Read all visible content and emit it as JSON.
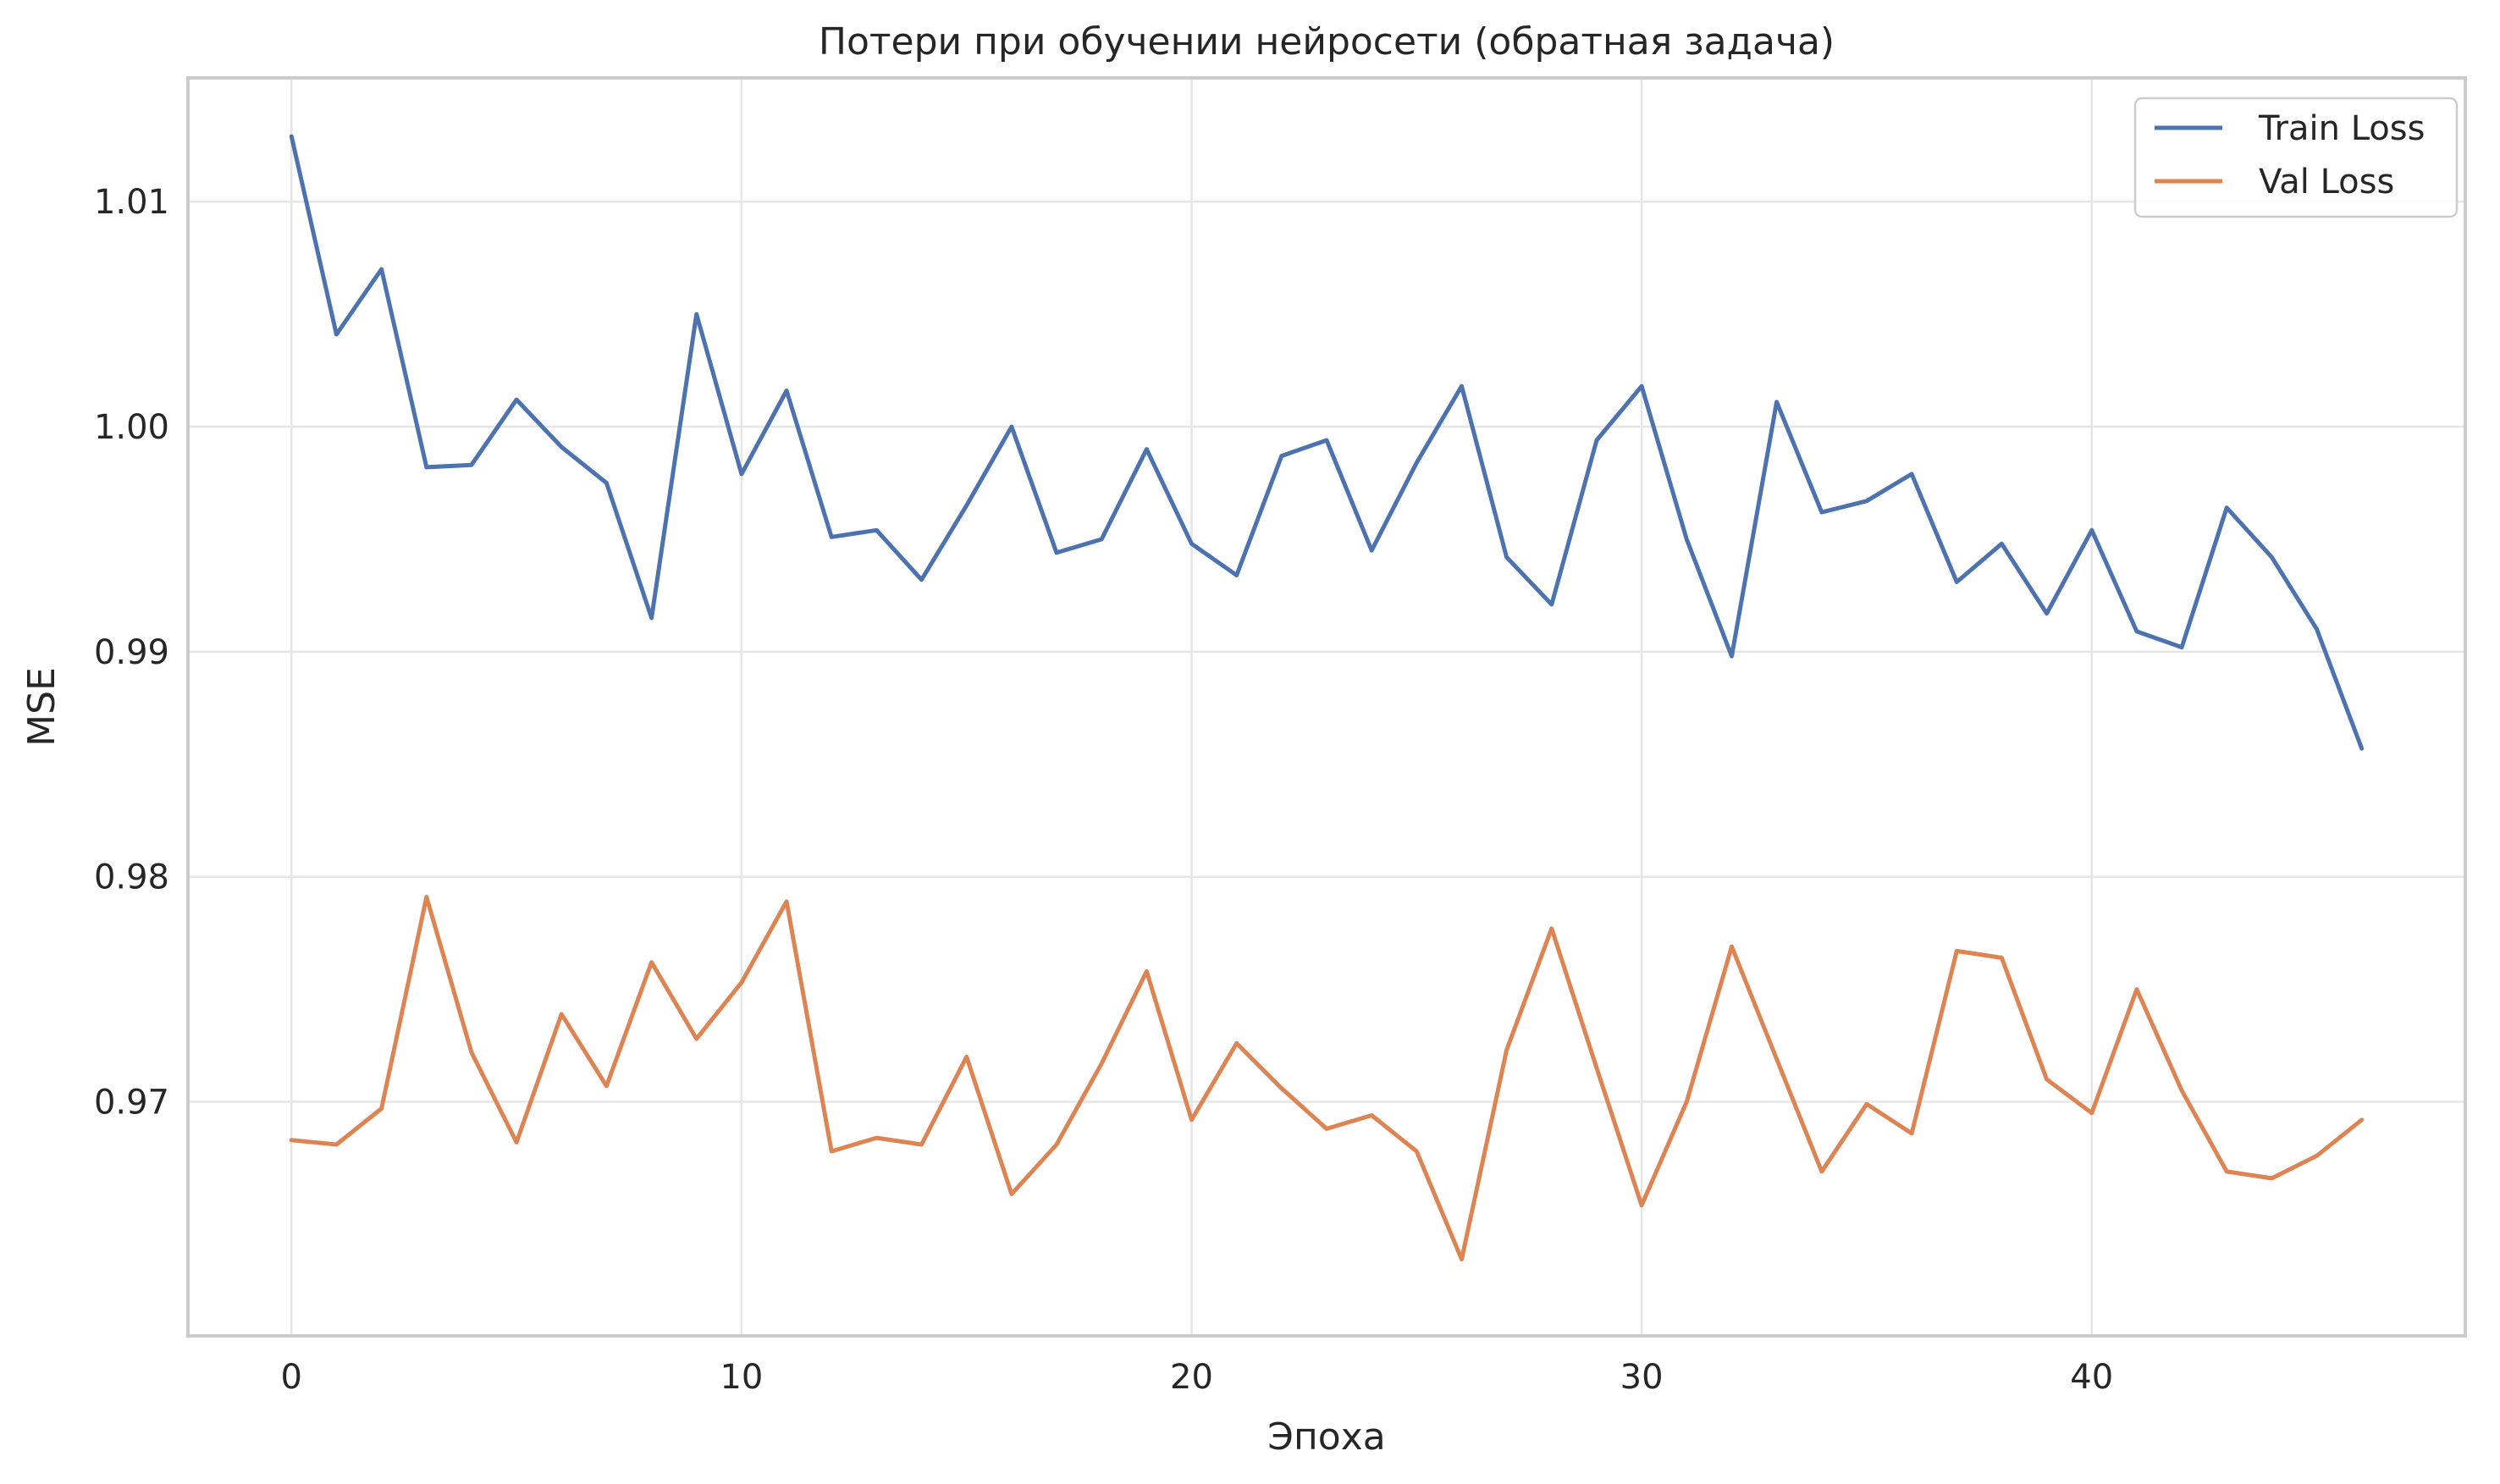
{
  "chart_data": {
    "type": "line",
    "title": "Потери при обучении нейросети (обратная задача)",
    "xlabel": "Эпоха",
    "ylabel": "MSE",
    "xlim": [
      -2.3,
      48.3
    ],
    "ylim": [
      0.9596,
      1.0155
    ],
    "x_ticks": [
      0,
      10,
      20,
      30,
      40
    ],
    "y_ticks": [
      0.97,
      0.98,
      0.99,
      1.0,
      1.01
    ],
    "y_tick_labels": [
      "0.97",
      "0.98",
      "0.99",
      "1.00",
      "1.01"
    ],
    "grid": true,
    "legend_position": "top-right",
    "x": [
      0,
      1,
      2,
      3,
      4,
      5,
      6,
      7,
      8,
      9,
      10,
      11,
      12,
      13,
      14,
      15,
      16,
      17,
      18,
      19,
      20,
      21,
      22,
      23,
      24,
      25,
      26,
      27,
      28,
      29,
      30,
      31,
      32,
      33,
      34,
      35,
      36,
      37,
      38,
      39,
      40,
      41,
      42,
      43,
      44,
      45,
      46
    ],
    "series": [
      {
        "name": "Train Loss",
        "color": "#4c72b0",
        "values": [
          1.0129,
          1.0041,
          1.007,
          0.9982,
          0.9983,
          1.0012,
          0.9991,
          0.9975,
          0.9915,
          1.005,
          0.9979,
          1.0016,
          0.9951,
          0.9954,
          0.9932,
          0.9965,
          1.0,
          0.9944,
          0.995,
          0.999,
          0.9948,
          0.9934,
          0.9987,
          0.9994,
          0.9945,
          0.9984,
          1.0018,
          0.9942,
          0.9921,
          0.9994,
          1.0018,
          0.995,
          0.9898,
          1.0011,
          0.9962,
          0.9967,
          0.9979,
          0.9931,
          0.9948,
          0.9917,
          0.9954,
          0.9909,
          0.9902,
          0.9964,
          0.9942,
          0.991,
          0.9857
        ]
      },
      {
        "name": "Val Loss",
        "color": "#dd8452",
        "values": [
          0.9683,
          0.9681,
          0.9697,
          0.9791,
          0.9722,
          0.9682,
          0.9739,
          0.9707,
          0.9762,
          0.9728,
          0.9753,
          0.9789,
          0.9678,
          0.9684,
          0.9681,
          0.972,
          0.9659,
          0.9681,
          0.9717,
          0.9758,
          0.9692,
          0.9726,
          0.9706,
          0.9688,
          0.9694,
          0.9678,
          0.963,
          0.9723,
          0.9777,
          0.9715,
          0.9654,
          0.97,
          0.9769,
          0.9719,
          0.9669,
          0.9699,
          0.9686,
          0.9767,
          0.9764,
          0.971,
          0.9695,
          0.975,
          0.9705,
          0.9669,
          0.9666,
          0.9676,
          0.9692
        ]
      }
    ]
  }
}
